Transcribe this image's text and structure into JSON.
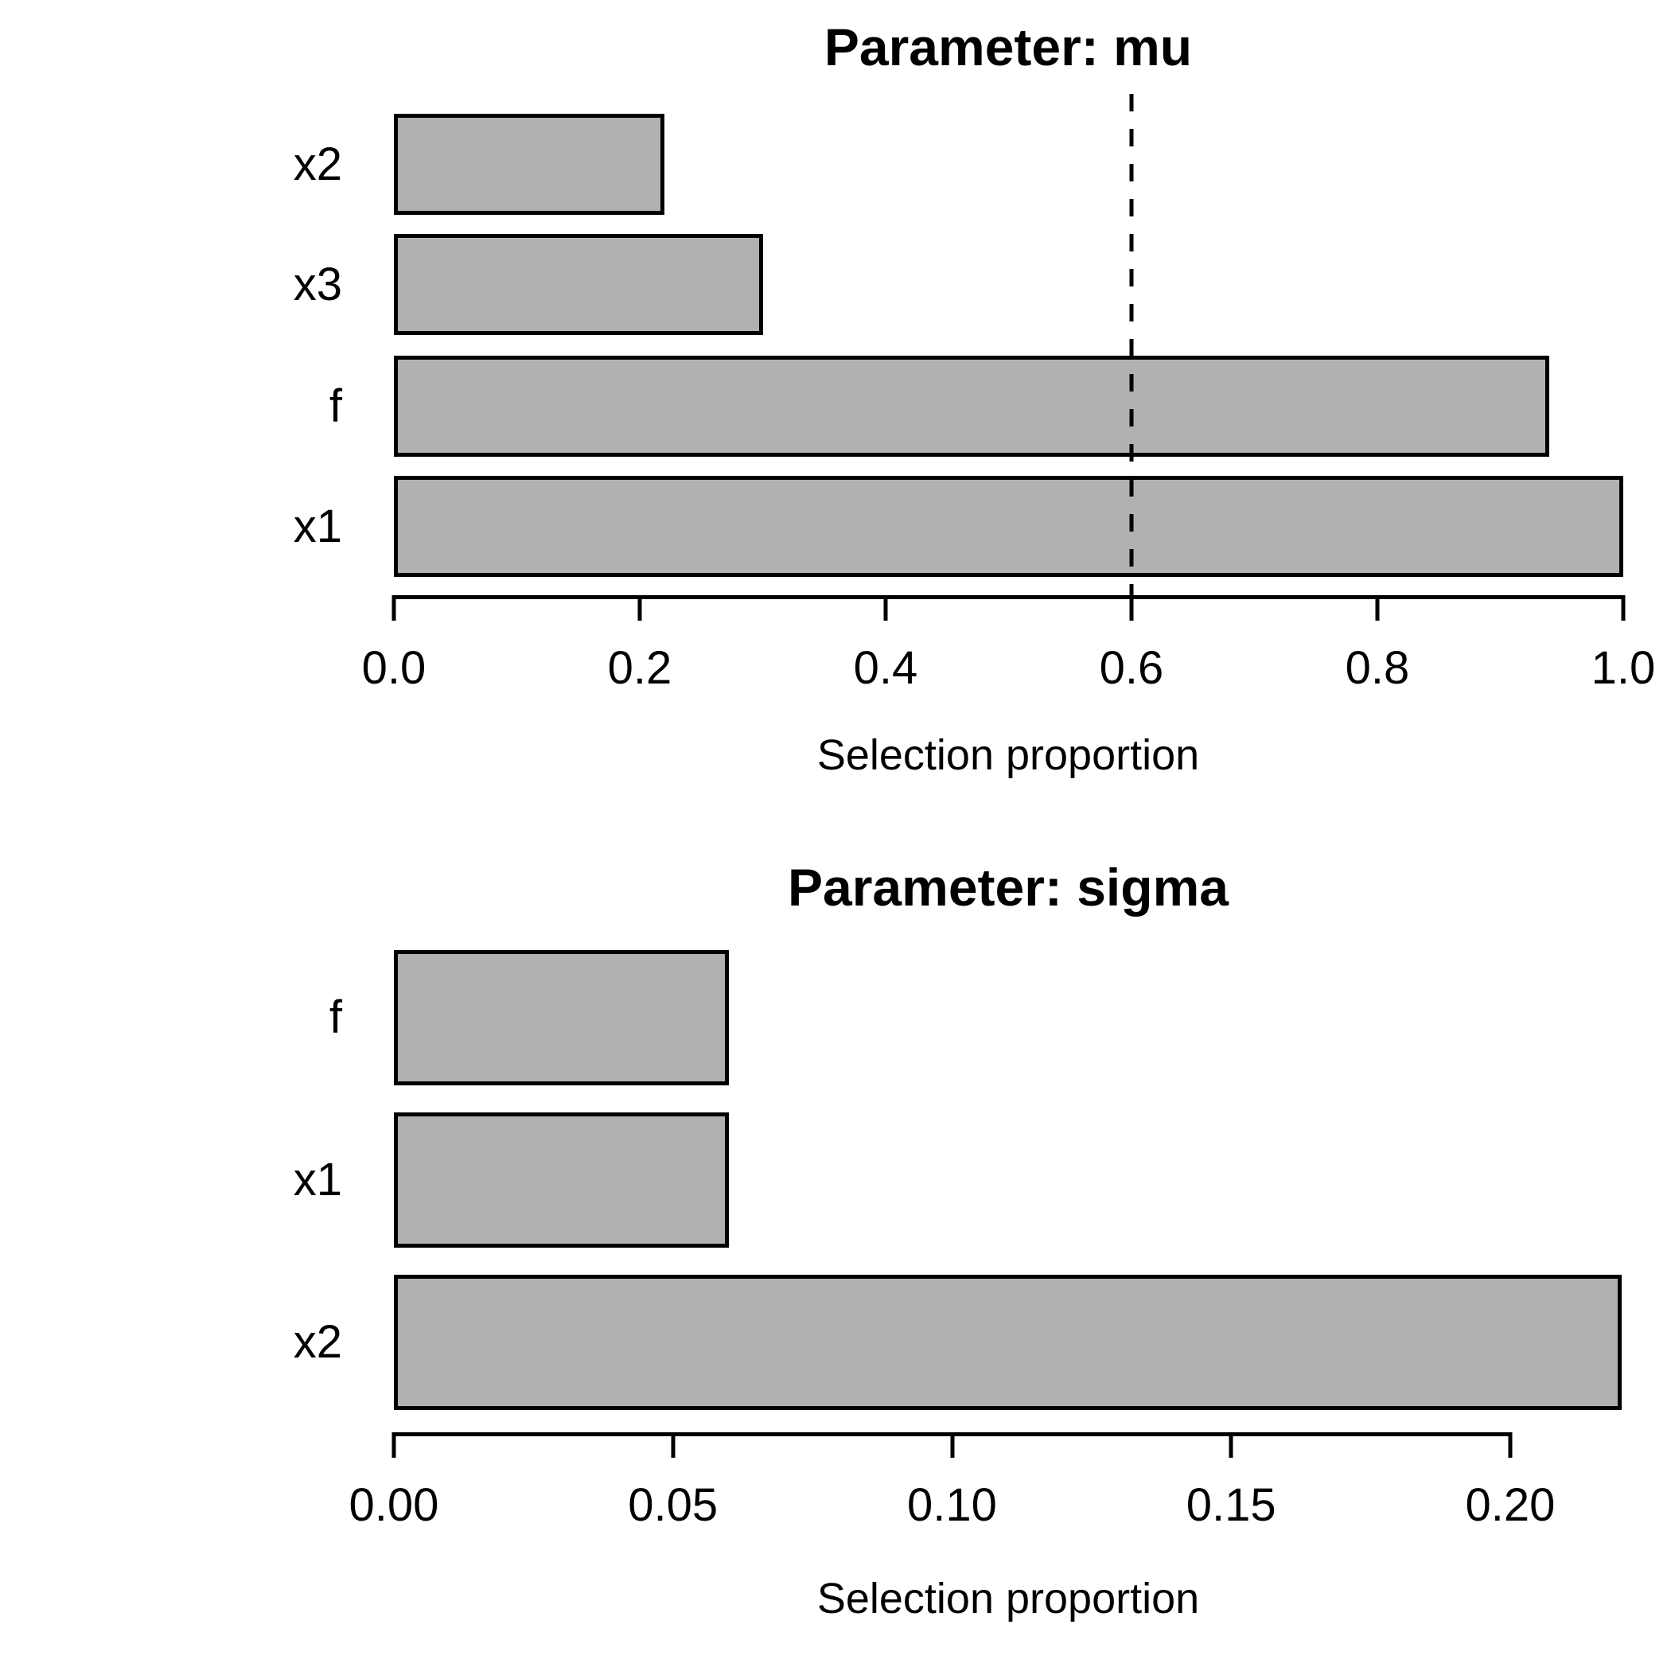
{
  "figure": {
    "background": "#ffffff",
    "text_color": "#000000"
  },
  "chart_data": [
    {
      "type": "bar",
      "orientation": "horizontal",
      "title": "Parameter: mu",
      "xlabel": "Selection proportion",
      "categories": [
        "x2",
        "x3",
        "f",
        "x1"
      ],
      "values": [
        0.22,
        0.3,
        0.94,
        1.0
      ],
      "xlim": [
        0,
        1.0
      ],
      "xticks": [
        0.0,
        0.2,
        0.4,
        0.6,
        0.8,
        1.0
      ],
      "xtick_labels": [
        "0.0",
        "0.2",
        "0.4",
        "0.6",
        "0.8",
        "1.0"
      ],
      "threshold_line": {
        "value": 0.6,
        "style": "dashed",
        "color": "#000000"
      },
      "bar_fill": "#b1b1b1",
      "bar_border": "#000000",
      "grid": false,
      "legend": false
    },
    {
      "type": "bar",
      "orientation": "horizontal",
      "title": "Parameter: sigma",
      "xlabel": "Selection proportion",
      "categories": [
        "f",
        "x1",
        "x2"
      ],
      "values": [
        0.06,
        0.06,
        0.22
      ],
      "xlim": [
        0,
        0.22
      ],
      "xticks": [
        0.0,
        0.05,
        0.1,
        0.15,
        0.2
      ],
      "xtick_labels": [
        "0.00",
        "0.05",
        "0.10",
        "0.15",
        "0.20"
      ],
      "threshold_line": null,
      "bar_fill": "#b1b1b1",
      "bar_border": "#000000",
      "grid": false,
      "legend": false
    }
  ]
}
